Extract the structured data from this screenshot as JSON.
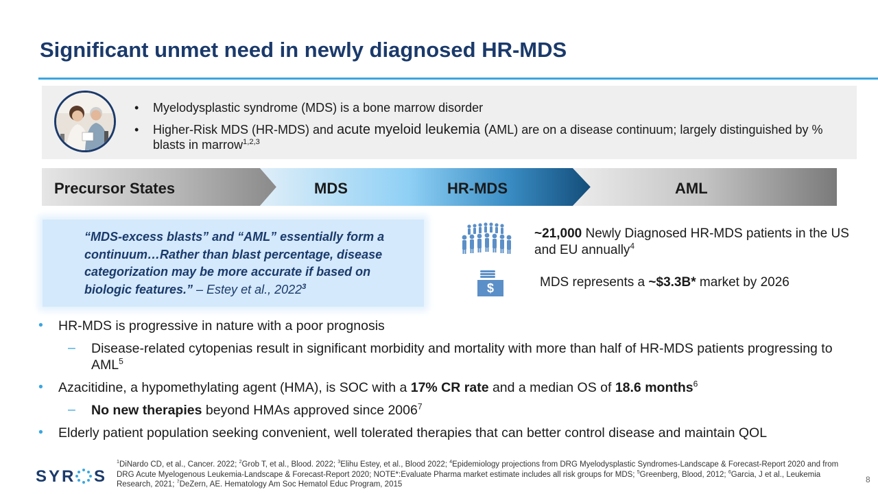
{
  "title": "Significant unmet need in newly diagnosed HR-MDS",
  "intro": {
    "bullet": "•",
    "items": [
      {
        "text": "Myelodysplastic syndrome (MDS) is a bone marrow disorder"
      },
      {
        "text_a": "Higher-Risk MDS (HR-MDS) and ",
        "text_b": "acute myeloid leukemia (",
        "text_c": "AML) are on a disease continuum; largely distinguished by % blasts in marrow",
        "sup": "1,2,3"
      }
    ]
  },
  "continuum": {
    "labels": [
      "Precursor States",
      "MDS",
      "HR-MDS",
      "AML"
    ]
  },
  "quote": {
    "text": "“MDS-excess blasts” and “AML” essentially form a continuum…Rather than blast percentage, disease categorization may be more accurate if based on biologic features.”",
    "cite": " – Estey et al., 2022",
    "sup": "3"
  },
  "stats": {
    "patients": {
      "bold": "~21,000",
      "text": " Newly Diagnosed HR-MDS patients in the US and EU annually",
      "sup": "4",
      "icon": "people-group-icon"
    },
    "market": {
      "text_a": "MDS represents a ",
      "bold": "~$3.3B*",
      "text_b": " market by 2026",
      "icon": "money-stack-icon",
      "icon_glyph": "$"
    }
  },
  "main_list": {
    "l1_marker": "•",
    "l2_marker": "–",
    "items": [
      {
        "text": "HR-MDS is progressive in nature with a poor prognosis"
      },
      {
        "text": "Disease-related cytopenias result in significant morbidity and mortality with more than half of HR-MDS patients progressing to AML",
        "sup": "5"
      },
      {
        "text_a": "Azacitidine, a hypomethylating agent (HMA), is SOC with a ",
        "bold_a": "17% CR rate",
        "text_b": " and a median OS of ",
        "bold_b": "18.6 months",
        "sup": "6"
      },
      {
        "bold": "No new therapies",
        "text": " beyond HMAs approved since 2006",
        "sup": "7"
      },
      {
        "text": "Elderly patient population seeking convenient, well tolerated therapies that can better control disease and maintain QOL"
      }
    ]
  },
  "footnote": {
    "parts": [
      {
        "sup": "1",
        "text": "DiNardo CD, et al., Cancer. 2022; "
      },
      {
        "sup": "2",
        "text": "Grob T, et al., Blood. 2022; "
      },
      {
        "sup": "3",
        "text": "Elihu Estey, et al., Blood 2022; "
      },
      {
        "sup": "4",
        "text": "Epidemiology projections from DRG Myelodysplastic Syndromes-Landscape & Forecast-Report 2020 and from DRG Acute Myelogenous Leukemia-Landscape & Forecast-Report 2020; NOTE*:Evaluate Pharma market estimate includes all risk groups for MDS; "
      },
      {
        "sup": "5",
        "text": "Greenberg, Blood, 2012; "
      },
      {
        "sup": "6",
        "text": "Garcia, J et al., Leukemia Research, 2021; "
      },
      {
        "sup": "7",
        "text": "DeZern, AE. Hematology Am Soc Hematol Educ Program, 2015"
      }
    ]
  },
  "logo": {
    "text": "SYROS"
  },
  "page_number": "8",
  "colors": {
    "title": "#1b3a6b",
    "accent": "#3aa6e0",
    "gray_box": "#efefef",
    "quote_box": "#d4e9fb",
    "icon": "#5b8fc7"
  }
}
